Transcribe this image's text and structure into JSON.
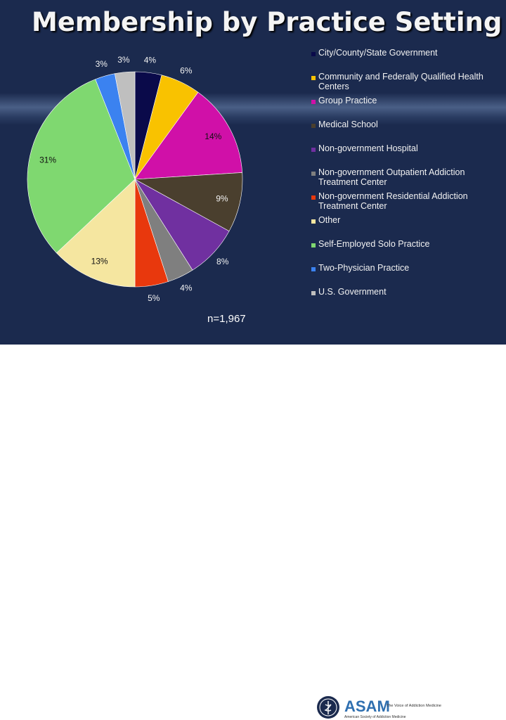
{
  "title": "Membership by Practice Setting",
  "sample_size": "n=1,967",
  "logo": {
    "wordmark": "ASAM",
    "tagline": "The Voice of Addiction Medicine",
    "org": "American Society of Addiction Medicine"
  },
  "chart_data": {
    "type": "pie",
    "title": "Membership by Practice Setting",
    "legend_position": "right",
    "slices": [
      {
        "name": "City/County/State Government",
        "value": 4,
        "label": "4%",
        "color": "#0a0a4a"
      },
      {
        "name": "Community and Federally Qualified Health Centers",
        "value": 6,
        "label": "6%",
        "color": "#f9c200"
      },
      {
        "name": "Group Practice",
        "value": 14,
        "label": "14%",
        "color": "#d010a8"
      },
      {
        "name": "Medical School",
        "value": 9,
        "label": "9%",
        "color": "#4a3f2e"
      },
      {
        "name": "Non-government Hospital",
        "value": 8,
        "label": "8%",
        "color": "#7030a0"
      },
      {
        "name": "Non-government Outpatient Addiction Treatment Center",
        "value": 4,
        "label": "4%",
        "color": "#7f7f7f"
      },
      {
        "name": "Non-government Residential Addiction Treatment Center",
        "value": 5,
        "label": "5%",
        "color": "#e8380d"
      },
      {
        "name": "Other",
        "value": 13,
        "label": "13%",
        "color": "#f5e6a0"
      },
      {
        "name": "Self-Employed Solo Practice",
        "value": 31,
        "label": "31%",
        "color": "#7fd870"
      },
      {
        "name": "Two-Physician Practice",
        "value": 3,
        "label": "3%",
        "color": "#3b82f0"
      },
      {
        "name": "U.S. Government",
        "value": 3,
        "label": "3%",
        "color": "#bfbfbf"
      }
    ]
  }
}
